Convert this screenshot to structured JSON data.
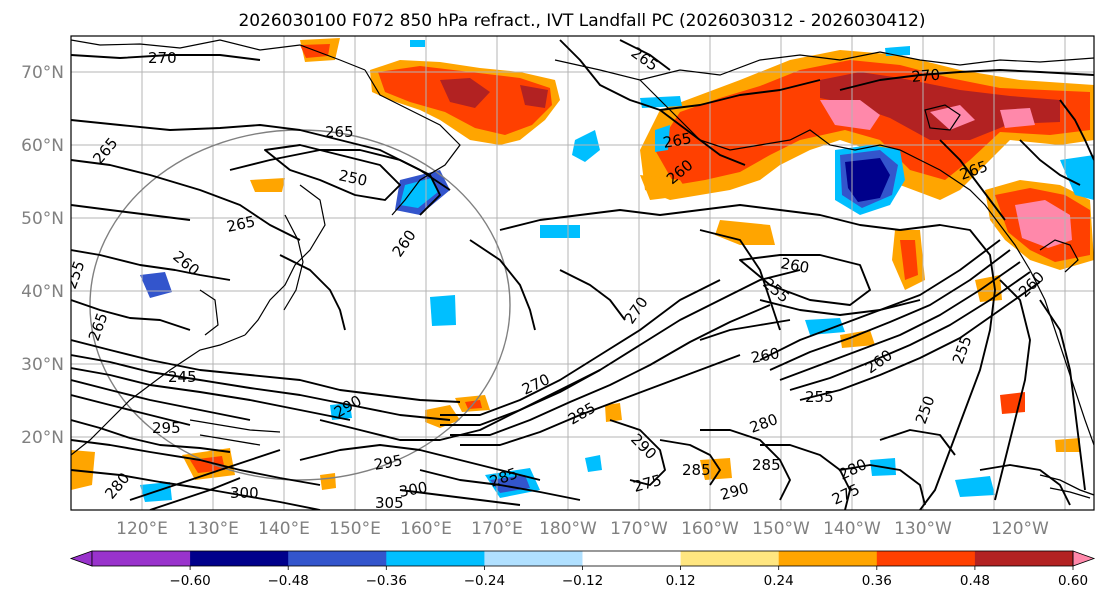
{
  "title": "2026030100 F072 850 hPa refract., IVT Landfall PC (2026030312 - 2026030412)",
  "lat_labels": [
    "70°N",
    "60°N",
    "50°N",
    "40°N",
    "30°N",
    "20°N"
  ],
  "lon_labels": [
    "120°E",
    "130°E",
    "140°E",
    "150°E",
    "160°E",
    "170°E",
    "180°W",
    "170°W",
    "160°W",
    "150°W",
    "140°W",
    "130°W",
    "120°W"
  ],
  "colorbar": {
    "ticks": [
      "−0.60",
      "−0.48",
      "−0.36",
      "−0.24",
      "−0.12",
      "0.12",
      "0.24",
      "0.36",
      "0.48",
      "0.60"
    ],
    "colors": [
      "#9933cc",
      "#00008b",
      "#3355cc",
      "#00bfff",
      "#b0e0ff",
      "#ffffff",
      "#ffe680",
      "#ffa500",
      "#ff4000",
      "#b22222",
      "#ff88aa",
      "#ff88aa"
    ]
  },
  "contour_labels": [
    "270",
    "265",
    "265",
    "265",
    "250",
    "265",
    "260",
    "255",
    "265",
    "260",
    "260",
    "255",
    "270",
    "260",
    "260",
    "255",
    "245",
    "295",
    "290",
    "270",
    "285",
    "290",
    "280",
    "285",
    "295",
    "300",
    "300",
    "305",
    "285",
    "275",
    "285",
    "280",
    "275",
    "250",
    "255",
    "260",
    "260",
    "265",
    "270",
    "280",
    "290",
    "265"
  ]
}
